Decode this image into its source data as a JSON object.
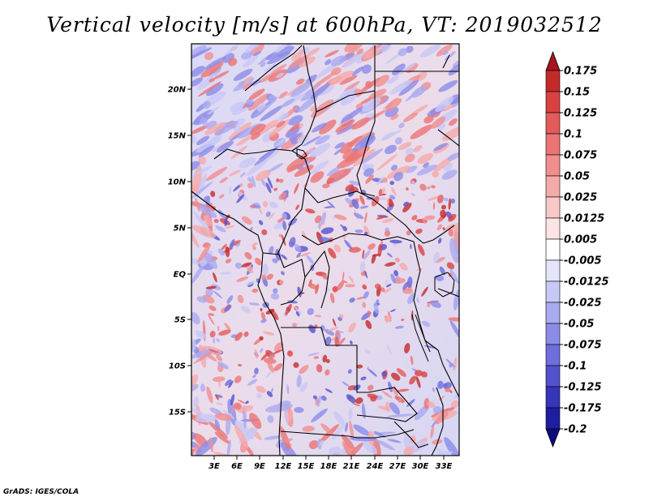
{
  "title": "Vertical velocity [m/s] at 600hPa, VT: 2019032512",
  "credit": "GrADS: IGES/COLA",
  "map": {
    "lat_labels": [
      "20N",
      "15N",
      "10N",
      "5N",
      "EQ",
      "5S",
      "10S",
      "15S"
    ],
    "lon_labels": [
      "3E",
      "6E",
      "9E",
      "12E",
      "15E",
      "18E",
      "21E",
      "24E",
      "27E",
      "30E",
      "33E"
    ]
  },
  "colorbar": {
    "labels": [
      "0.175",
      "0.15",
      "0.125",
      "0.1",
      "0.075",
      "0.05",
      "0.025",
      "0.0125",
      "0.005",
      "-0.005",
      "-0.0125",
      "-0.025",
      "-0.05",
      "-0.075",
      "-0.1",
      "-0.125",
      "-0.175",
      "-0.2"
    ],
    "colors": [
      "#a8141c",
      "#c42a2a",
      "#d94141",
      "#e55a5a",
      "#eb7474",
      "#f08e8e",
      "#f5aaaa",
      "#f9c8c8",
      "#fce4e4",
      "#ffffff",
      "#e4e4fb",
      "#c8c8f6",
      "#aaaaf0",
      "#8c8ce8",
      "#6e6edc",
      "#5252cc",
      "#3636b8",
      "#1e1ea0",
      "#0c0c80"
    ]
  }
}
